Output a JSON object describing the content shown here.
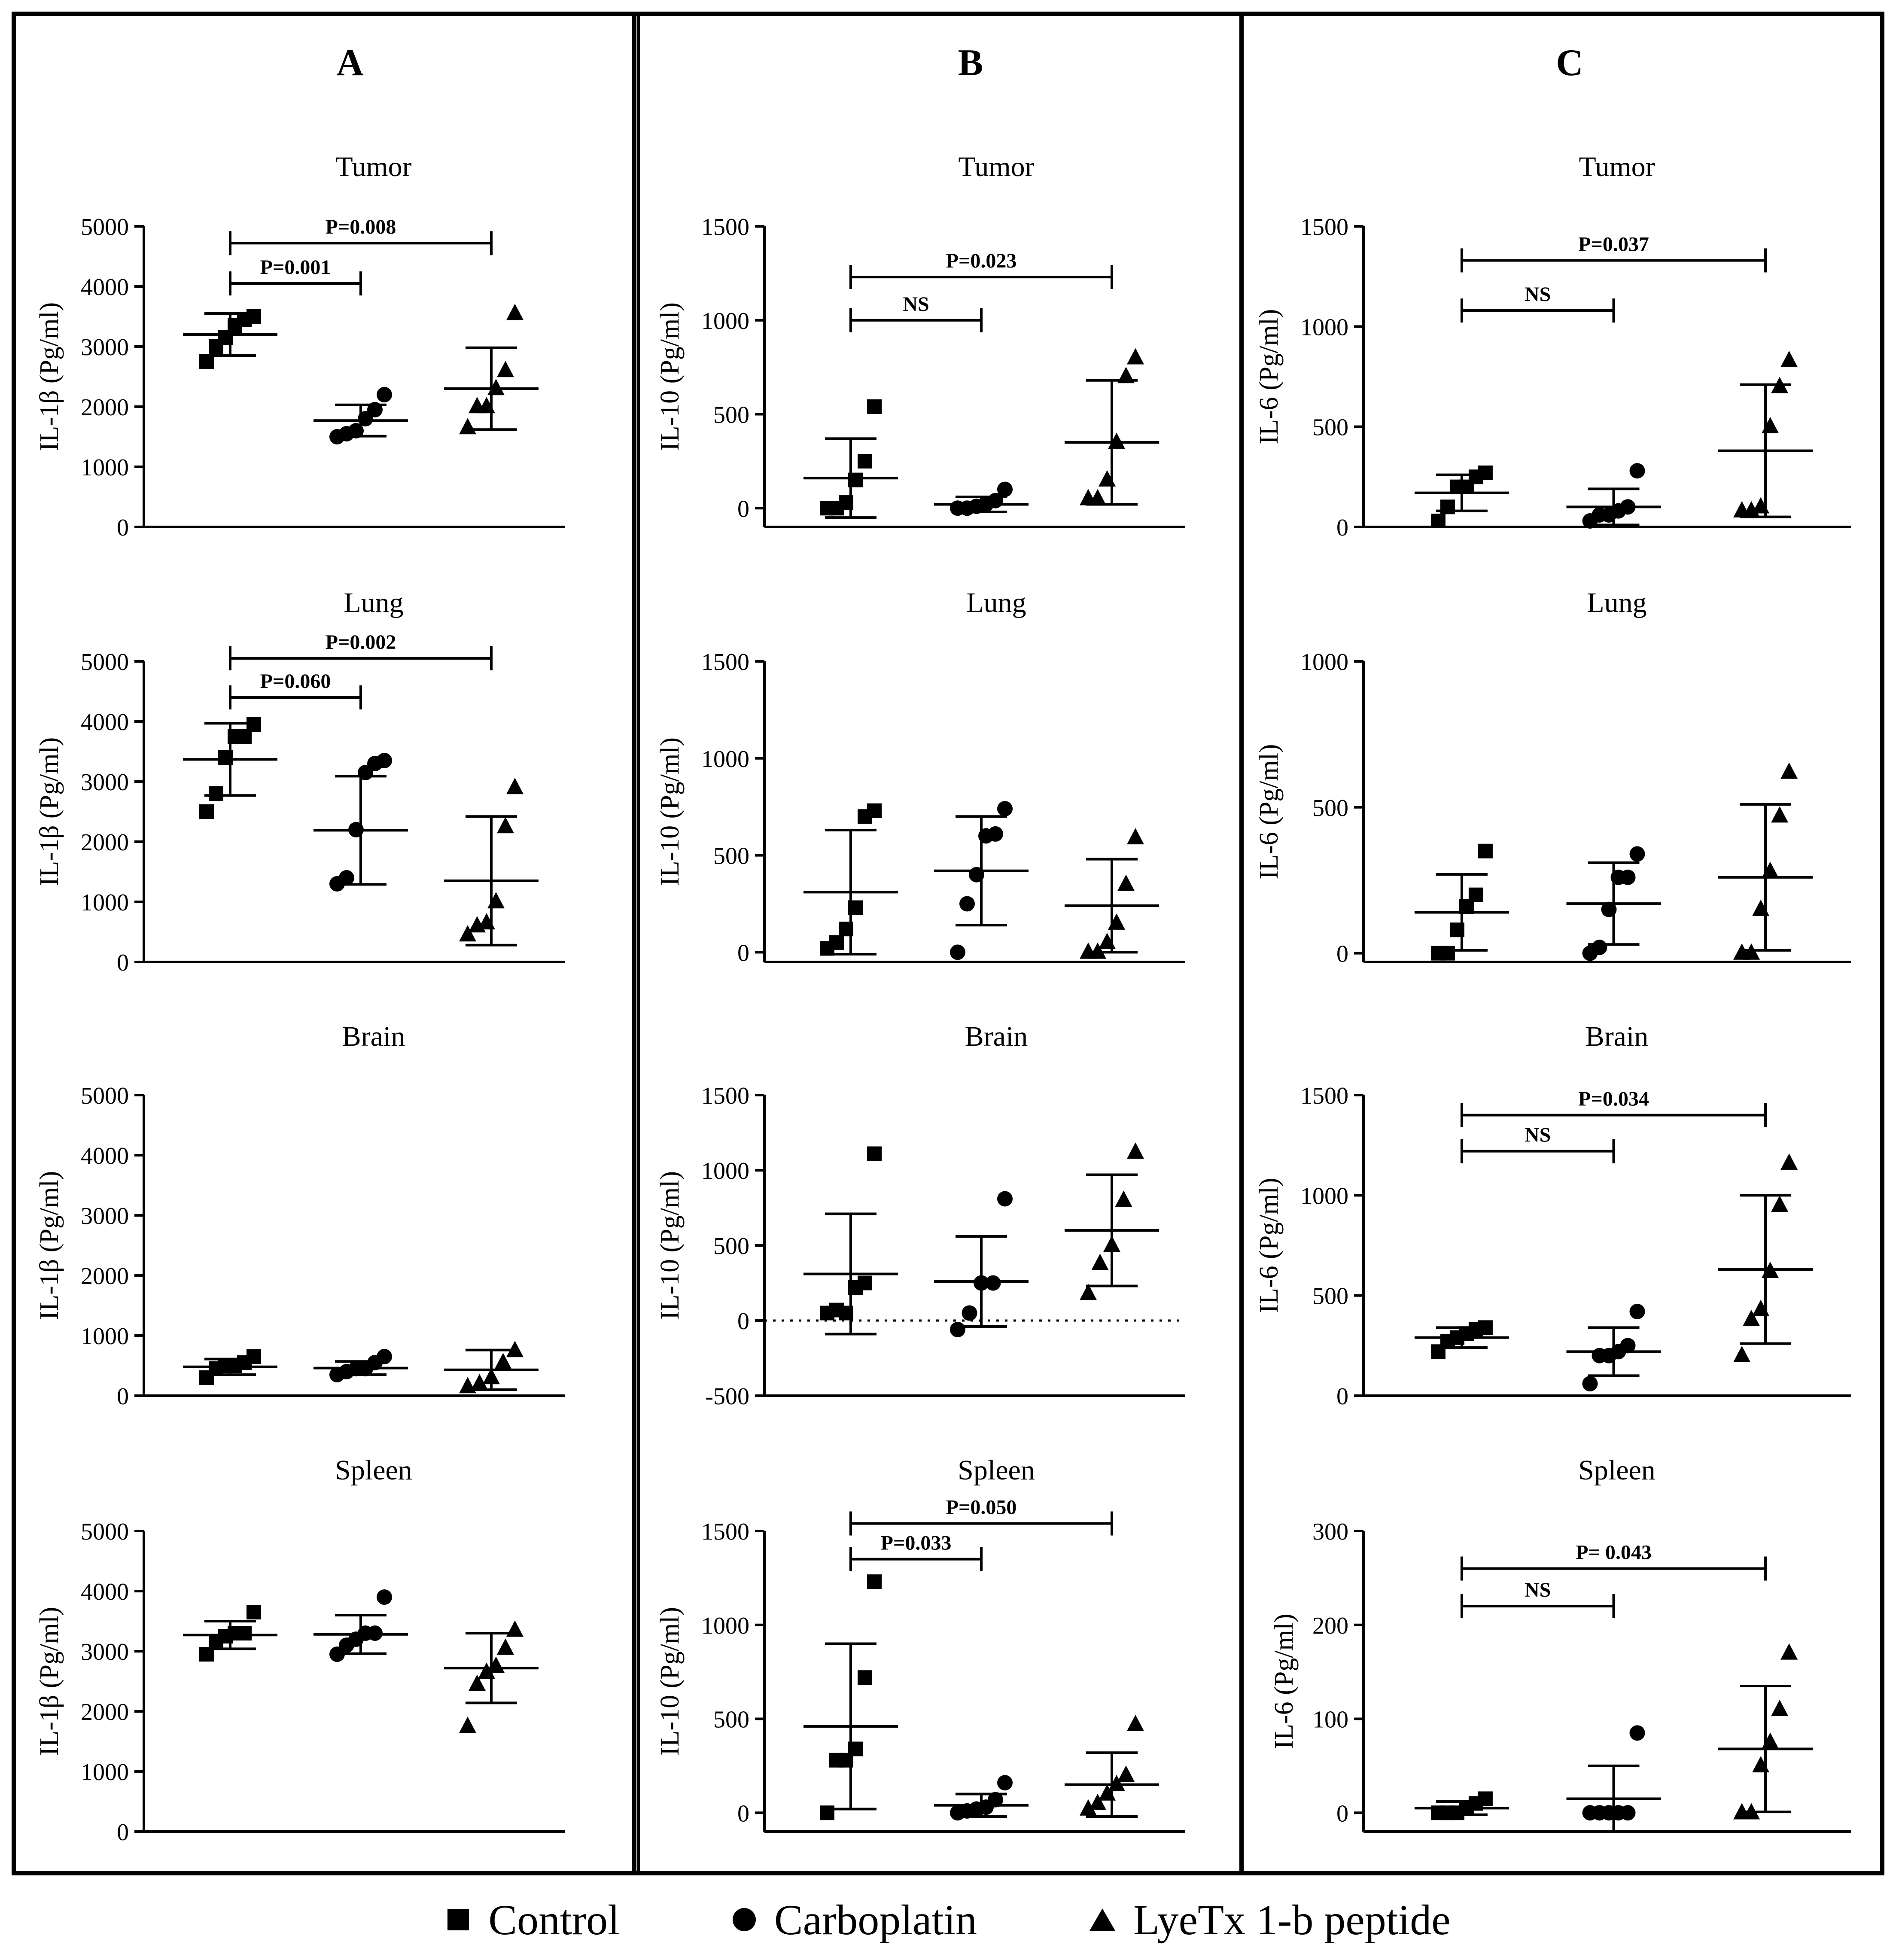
{
  "colors": {
    "ink": "#000000",
    "background": "#ffffff"
  },
  "legend": [
    {
      "label": "Control",
      "marker": "square-icon"
    },
    {
      "label": "Carboplatin",
      "marker": "circle-icon"
    },
    {
      "label": "LyeTx 1-b peptide",
      "marker": "triangle-icon"
    }
  ],
  "chart_data": [
    {
      "panel": "A",
      "title": "Tumor",
      "type": "scatter",
      "ylabel": "IL-1β (Pg/ml)",
      "ylim": [
        0,
        5000
      ],
      "yticks": [
        0,
        1000,
        2000,
        3000,
        4000,
        5000
      ],
      "zero_line": false,
      "groups": [
        {
          "name": "Control",
          "marker": "square",
          "values": [
            2750,
            3000,
            3150,
            3350,
            3450,
            3500
          ],
          "mean": 3200,
          "sd": 350
        },
        {
          "name": "Carboplatin",
          "marker": "circle",
          "values": [
            1500,
            1550,
            1600,
            1800,
            1950,
            2200
          ],
          "mean": 1770,
          "sd": 260
        },
        {
          "name": "LyeTx 1-b peptide",
          "marker": "triangle",
          "values": [
            1650,
            2000,
            2000,
            2300,
            2600,
            3550
          ],
          "mean": 2300,
          "sd": 680
        }
      ],
      "annotations": [
        {
          "from": 0,
          "to": 1,
          "text": "P=0.001",
          "y": 4050
        },
        {
          "from": 0,
          "to": 2,
          "text": "P=0.008",
          "y": 4720
        }
      ]
    },
    {
      "panel": "A",
      "title": "Lung",
      "type": "scatter",
      "ylabel": "IL-1β (Pg/ml)",
      "ylim": [
        0,
        5000
      ],
      "yticks": [
        0,
        1000,
        2000,
        3000,
        4000,
        5000
      ],
      "zero_line": false,
      "groups": [
        {
          "name": "Control",
          "marker": "square",
          "values": [
            2500,
            2800,
            3400,
            3750,
            3750,
            3950
          ],
          "mean": 3370,
          "sd": 600
        },
        {
          "name": "Carboplatin",
          "marker": "circle",
          "values": [
            1300,
            1400,
            2200,
            3150,
            3300,
            3350
          ],
          "mean": 2190,
          "sd": 900
        },
        {
          "name": "LyeTx 1-b peptide",
          "marker": "triangle",
          "values": [
            450,
            600,
            650,
            1000,
            2250,
            2900
          ],
          "mean": 1350,
          "sd": 1070
        }
      ],
      "annotations": [
        {
          "from": 0,
          "to": 1,
          "text": "P=0.060",
          "y": 4400
        },
        {
          "from": 0,
          "to": 2,
          "text": "P=0.002",
          "y": 5050
        }
      ]
    },
    {
      "panel": "A",
      "title": "Brain",
      "type": "scatter",
      "ylabel": "IL-1β (Pg/ml)",
      "ylim": [
        0,
        5000
      ],
      "yticks": [
        0,
        1000,
        2000,
        3000,
        4000,
        5000
      ],
      "zero_line": false,
      "groups": [
        {
          "name": "Control",
          "marker": "square",
          "values": [
            300,
            450,
            500,
            500,
            550,
            650
          ],
          "mean": 480,
          "sd": 130
        },
        {
          "name": "Carboplatin",
          "marker": "circle",
          "values": [
            350,
            400,
            450,
            450,
            550,
            650
          ],
          "mean": 460,
          "sd": 110
        },
        {
          "name": "LyeTx 1-b peptide",
          "marker": "triangle",
          "values": [
            150,
            200,
            300,
            550,
            750
          ],
          "mean": 430,
          "sd": 330
        }
      ],
      "annotations": []
    },
    {
      "panel": "A",
      "title": "Spleen",
      "type": "scatter",
      "ylabel": "IL-1β (Pg/ml)",
      "ylim": [
        0,
        5000
      ],
      "yticks": [
        0,
        1000,
        2000,
        3000,
        4000,
        5000
      ],
      "zero_line": false,
      "groups": [
        {
          "name": "Control",
          "marker": "square",
          "values": [
            2950,
            3150,
            3250,
            3300,
            3300,
            3650
          ],
          "mean": 3270,
          "sd": 230
        },
        {
          "name": "Carboplatin",
          "marker": "circle",
          "values": [
            2950,
            3100,
            3200,
            3300,
            3300,
            3900
          ],
          "mean": 3280,
          "sd": 320
        },
        {
          "name": "LyeTx 1-b peptide",
          "marker": "triangle",
          "values": [
            1750,
            2450,
            2650,
            2750,
            3050,
            3350
          ],
          "mean": 2720,
          "sd": 580
        }
      ],
      "annotations": []
    },
    {
      "panel": "B",
      "title": "Tumor",
      "type": "scatter",
      "ylabel": "IL-10 (Pg/ml)",
      "ylim": [
        -100,
        1500
      ],
      "yticks": [
        0,
        500,
        1000,
        1500
      ],
      "zero_line": false,
      "groups": [
        {
          "name": "Control",
          "marker": "square",
          "values": [
            0,
            0,
            30,
            150,
            250,
            540
          ],
          "mean": 160,
          "sd": 210
        },
        {
          "name": "Carboplatin",
          "marker": "circle",
          "values": [
            0,
            0,
            10,
            20,
            40,
            100
          ],
          "mean": 20,
          "sd": 40
        },
        {
          "name": "LyeTx 1-b peptide",
          "marker": "triangle",
          "values": [
            50,
            50,
            150,
            350,
            700,
            800
          ],
          "mean": 350,
          "sd": 330
        }
      ],
      "annotations": [
        {
          "from": 0,
          "to": 1,
          "text": "NS",
          "y": 1000
        },
        {
          "from": 0,
          "to": 2,
          "text": "P=0.023",
          "y": 1230
        }
      ]
    },
    {
      "panel": "B",
      "title": "Lung",
      "type": "scatter",
      "ylabel": "IL-10 (Pg/ml)",
      "ylim": [
        -50,
        1500
      ],
      "yticks": [
        0,
        500,
        1000,
        1500
      ],
      "zero_line": false,
      "groups": [
        {
          "name": "Control",
          "marker": "square",
          "values": [
            20,
            50,
            120,
            230,
            700,
            730
          ],
          "mean": 310,
          "sd": 320
        },
        {
          "name": "Carboplatin",
          "marker": "circle",
          "values": [
            0,
            250,
            400,
            600,
            610,
            740
          ],
          "mean": 420,
          "sd": 280
        },
        {
          "name": "LyeTx 1-b peptide",
          "marker": "triangle",
          "values": [
            0,
            0,
            50,
            150,
            350,
            590
          ],
          "mean": 240,
          "sd": 240
        }
      ],
      "annotations": []
    },
    {
      "panel": "B",
      "title": "Brain",
      "type": "scatter",
      "ylabel": "IL-10 (Pg/ml)",
      "ylim": [
        -500,
        1500
      ],
      "yticks": [
        -500,
        0,
        500,
        1000,
        1500
      ],
      "zero_line": true,
      "groups": [
        {
          "name": "Control",
          "marker": "square",
          "values": [
            50,
            70,
            50,
            220,
            250,
            1110
          ],
          "mean": 310,
          "sd": 400
        },
        {
          "name": "Carboplatin",
          "marker": "circle",
          "values": [
            -60,
            50,
            250,
            250,
            810
          ],
          "mean": 260,
          "sd": 300
        },
        {
          "name": "LyeTx 1-b peptide",
          "marker": "triangle",
          "values": [
            180,
            380,
            500,
            800,
            1120
          ],
          "mean": 600,
          "sd": 370
        }
      ],
      "annotations": []
    },
    {
      "panel": "B",
      "title": "Spleen",
      "type": "scatter",
      "ylabel": "IL-10 (Pg/ml)",
      "ylim": [
        -100,
        1500
      ],
      "yticks": [
        0,
        500,
        1000,
        1500
      ],
      "zero_line": false,
      "groups": [
        {
          "name": "Control",
          "marker": "square",
          "values": [
            0,
            280,
            280,
            340,
            720,
            1230
          ],
          "mean": 460,
          "sd": 440
        },
        {
          "name": "Carboplatin",
          "marker": "circle",
          "values": [
            0,
            10,
            20,
            30,
            70,
            160
          ],
          "mean": 40,
          "sd": 60
        },
        {
          "name": "LyeTx 1-b peptide",
          "marker": "triangle",
          "values": [
            20,
            50,
            100,
            150,
            200,
            470
          ],
          "mean": 150,
          "sd": 170
        }
      ],
      "annotations": [
        {
          "from": 0,
          "to": 1,
          "text": "P=0.033",
          "y": 1350
        },
        {
          "from": 0,
          "to": 2,
          "text": "P=0.050",
          "y": 1540
        }
      ]
    },
    {
      "panel": "C",
      "title": "Tumor",
      "type": "scatter",
      "ylabel": "IL-6 (Pg/ml)",
      "ylim": [
        0,
        1500
      ],
      "yticks": [
        0,
        500,
        1000,
        1500
      ],
      "zero_line": false,
      "groups": [
        {
          "name": "Control",
          "marker": "square",
          "values": [
            30,
            100,
            200,
            200,
            250,
            270
          ],
          "mean": 170,
          "sd": 90
        },
        {
          "name": "Carboplatin",
          "marker": "circle",
          "values": [
            30,
            60,
            60,
            80,
            100,
            280
          ],
          "mean": 100,
          "sd": 90
        },
        {
          "name": "LyeTx 1-b peptide",
          "marker": "triangle",
          "values": [
            80,
            80,
            100,
            500,
            700,
            830
          ],
          "mean": 380,
          "sd": 330
        }
      ],
      "annotations": [
        {
          "from": 0,
          "to": 1,
          "text": "NS",
          "y": 1080
        },
        {
          "from": 0,
          "to": 2,
          "text": "P=0.037",
          "y": 1330
        }
      ]
    },
    {
      "panel": "C",
      "title": "Lung",
      "type": "scatter",
      "ylabel": "IL-6 (Pg/ml)",
      "ylim": [
        -30,
        1000
      ],
      "yticks": [
        0,
        500,
        1000
      ],
      "zero_line": false,
      "groups": [
        {
          "name": "Control",
          "marker": "square",
          "values": [
            0,
            0,
            80,
            160,
            200,
            350
          ],
          "mean": 140,
          "sd": 130
        },
        {
          "name": "Carboplatin",
          "marker": "circle",
          "values": [
            0,
            20,
            150,
            260,
            260,
            340
          ],
          "mean": 170,
          "sd": 140
        },
        {
          "name": "LyeTx 1-b peptide",
          "marker": "triangle",
          "values": [
            0,
            0,
            150,
            280,
            470,
            620
          ],
          "mean": 260,
          "sd": 250
        }
      ],
      "annotations": []
    },
    {
      "panel": "C",
      "title": "Brain",
      "type": "scatter",
      "ylabel": "IL-6 (Pg/ml)",
      "ylim": [
        0,
        1500
      ],
      "yticks": [
        0,
        500,
        1000,
        1500
      ],
      "zero_line": false,
      "groups": [
        {
          "name": "Control",
          "marker": "square",
          "values": [
            220,
            270,
            290,
            310,
            330,
            340
          ],
          "mean": 290,
          "sd": 50
        },
        {
          "name": "Carboplatin",
          "marker": "circle",
          "values": [
            60,
            200,
            200,
            220,
            250,
            420
          ],
          "mean": 220,
          "sd": 120
        },
        {
          "name": "LyeTx 1-b peptide",
          "marker": "triangle",
          "values": [
            200,
            380,
            430,
            620,
            950,
            1160
          ],
          "mean": 630,
          "sd": 370
        }
      ],
      "annotations": [
        {
          "from": 0,
          "to": 1,
          "text": "NS",
          "y": 1220
        },
        {
          "from": 0,
          "to": 2,
          "text": "P=0.034",
          "y": 1400
        }
      ]
    },
    {
      "panel": "C",
      "title": "Spleen",
      "type": "scatter",
      "ylabel": "IL-6 (Pg/ml)",
      "ylim": [
        -20,
        300
      ],
      "yticks": [
        0,
        100,
        200,
        300
      ],
      "zero_line": false,
      "groups": [
        {
          "name": "Control",
          "marker": "square",
          "values": [
            0,
            0,
            0,
            5,
            10,
            15
          ],
          "mean": 5,
          "sd": 7
        },
        {
          "name": "Carboplatin",
          "marker": "circle",
          "values": [
            0,
            0,
            0,
            0,
            0,
            85
          ],
          "mean": 15,
          "sd": 35
        },
        {
          "name": "LyeTx 1-b peptide",
          "marker": "triangle",
          "values": [
            0,
            0,
            50,
            75,
            110,
            170
          ],
          "mean": 68,
          "sd": 67
        }
      ],
      "annotations": [
        {
          "from": 0,
          "to": 1,
          "text": "NS",
          "y": 220
        },
        {
          "from": 0,
          "to": 2,
          "text": "P= 0.043",
          "y": 260
        }
      ]
    }
  ],
  "panels": [
    {
      "label": "A"
    },
    {
      "label": "B"
    },
    {
      "label": "C"
    }
  ]
}
